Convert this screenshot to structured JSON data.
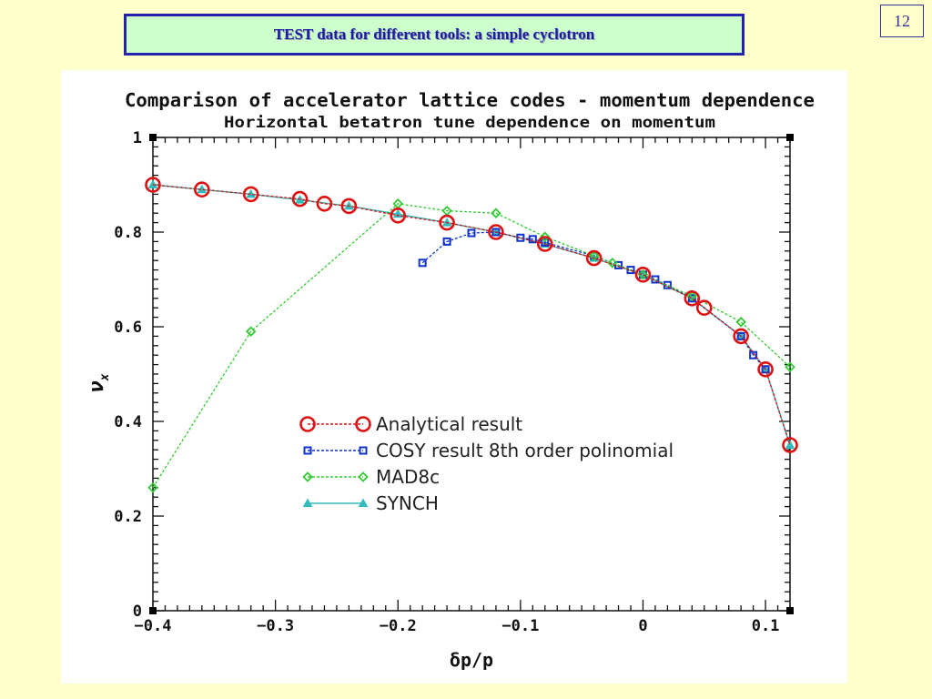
{
  "slide": {
    "title": "TEST data for different tools: a simple cyclotron",
    "page_number": "12"
  },
  "chart_data": {
    "type": "line",
    "title": "Comparison of accelerator lattice codes - momentum dependence",
    "subtitle": "Horizontal betatron tune dependence on momentum",
    "xlabel": "δp/p",
    "ylabel": "ν",
    "ylabel_subscript": "x",
    "xlim": [
      -0.4,
      0.12
    ],
    "ylim": [
      0,
      1
    ],
    "x_ticks": [
      {
        "value": -0.4,
        "label": "−0.4"
      },
      {
        "value": -0.3,
        "label": "−0.3"
      },
      {
        "value": -0.2,
        "label": "−0.2"
      },
      {
        "value": -0.1,
        "label": "−0.1"
      },
      {
        "value": 0,
        "label": "0"
      },
      {
        "value": 0.1,
        "label": "0.1"
      }
    ],
    "y_ticks": [
      {
        "value": 0,
        "label": "0"
      },
      {
        "value": 0.2,
        "label": "0.2"
      },
      {
        "value": 0.4,
        "label": "0.4"
      },
      {
        "value": 0.6,
        "label": "0.6"
      },
      {
        "value": 0.8,
        "label": "0.8"
      },
      {
        "value": 1,
        "label": "1"
      }
    ],
    "grid": false,
    "legend_position": "lower-center",
    "series": [
      {
        "name": "Analytical result",
        "color": "#dd1111",
        "marker": "circle",
        "line": "dashed",
        "x": [
          -0.4,
          -0.36,
          -0.32,
          -0.28,
          -0.26,
          -0.24,
          -0.2,
          -0.16,
          -0.12,
          -0.08,
          -0.04,
          0,
          0.04,
          0.05,
          0.08,
          0.1,
          0.12
        ],
        "y": [
          0.9,
          0.89,
          0.88,
          0.87,
          0.86,
          0.855,
          0.835,
          0.82,
          0.8,
          0.775,
          0.745,
          0.71,
          0.66,
          0.64,
          0.58,
          0.51,
          0.35
        ]
      },
      {
        "name": "COSY result 8th order polinomial",
        "color": "#1133cc",
        "marker": "square",
        "line": "dashed",
        "x": [
          -0.18,
          -0.16,
          -0.14,
          -0.12,
          -0.1,
          -0.09,
          -0.08,
          -0.04,
          -0.02,
          -0.01,
          0,
          0.01,
          0.02,
          0.04,
          0.08,
          0.09,
          0.1
        ],
        "y": [
          0.735,
          0.78,
          0.798,
          0.8,
          0.788,
          0.785,
          0.778,
          0.75,
          0.73,
          0.72,
          0.71,
          0.7,
          0.688,
          0.66,
          0.58,
          0.54,
          0.51
        ]
      },
      {
        "name": "MAD8c",
        "color": "#33cc33",
        "marker": "diamond",
        "line": "dashed",
        "x": [
          -0.4,
          -0.32,
          -0.2,
          -0.16,
          -0.12,
          -0.08,
          -0.04,
          -0.025,
          0,
          0.04,
          0.08,
          0.12
        ],
        "y": [
          0.26,
          0.59,
          0.86,
          0.845,
          0.84,
          0.79,
          0.75,
          0.735,
          0.71,
          0.665,
          0.61,
          0.515
        ]
      },
      {
        "name": "SYNCH",
        "color": "#33bbbb",
        "marker": "triangle",
        "line": "solid",
        "x": [
          -0.4,
          -0.36,
          -0.32,
          -0.28,
          -0.24,
          -0.2,
          -0.16,
          -0.12,
          -0.08,
          -0.04,
          0,
          0.04,
          0.08,
          0.1,
          0.12
        ],
        "y": [
          0.9,
          0.89,
          0.88,
          0.868,
          0.855,
          0.838,
          0.82,
          0.8,
          0.775,
          0.745,
          0.71,
          0.66,
          0.58,
          0.51,
          0.35
        ]
      }
    ]
  }
}
